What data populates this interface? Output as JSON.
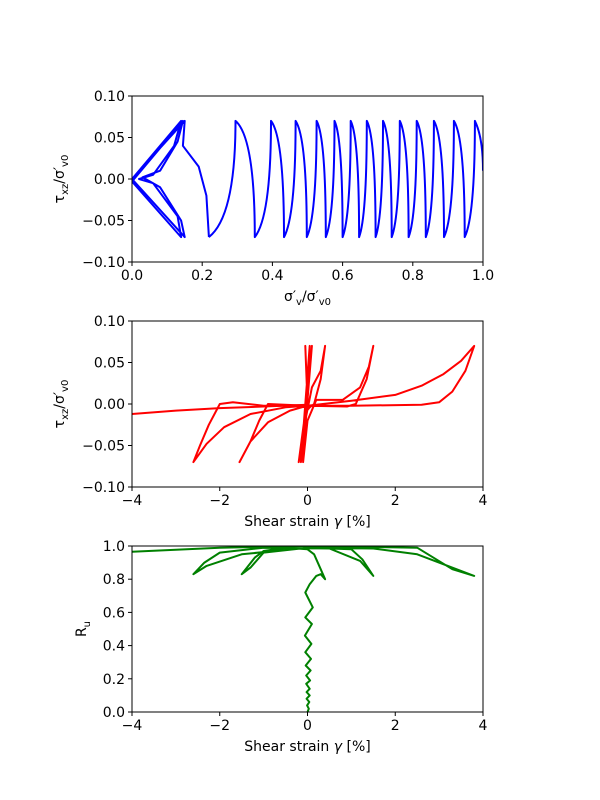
{
  "chart_data": [
    {
      "type": "line",
      "title": "",
      "xlabel": [
        [
          "σ′"
        ],
        [
          "v",
          "sub"
        ],
        [
          "/σ′"
        ],
        [
          "v0",
          "sub"
        ]
      ],
      "ylabel": [
        [
          "τ"
        ],
        [
          "xz",
          "sub"
        ],
        [
          "/σ′"
        ],
        [
          "v0",
          "sub"
        ]
      ],
      "xlim": [
        0,
        1
      ],
      "ylim": [
        -0.1,
        0.1
      ],
      "xticks": [
        "0.0",
        "0.2",
        "0.4",
        "0.6",
        "0.8",
        "1.0"
      ],
      "yticks": [
        "−0.10",
        "−0.05",
        "0.00",
        "0.05",
        "0.10"
      ],
      "xtick_values": [
        0,
        0.2,
        0.4,
        0.6,
        0.8,
        1.0
      ],
      "ytick_values": [
        -0.1,
        -0.05,
        0,
        0.05,
        0.1
      ],
      "color": "#0000ff",
      "initial_points": [
        [
          0,
          0
        ],
        [
          0.14,
          0.07
        ],
        [
          0.12,
          0.04
        ],
        [
          0.06,
          0.005
        ],
        [
          0.02,
          0
        ],
        [
          0.06,
          -0.005
        ],
        [
          0.13,
          -0.045
        ],
        [
          0.14,
          -0.07
        ],
        [
          0.0,
          -0.003
        ],
        [
          0.145,
          0.07
        ],
        [
          0.13,
          0.045
        ],
        [
          0.08,
          0.01
        ],
        [
          0.03,
          0.002
        ],
        [
          0.08,
          -0.01
        ],
        [
          0.14,
          -0.05
        ],
        [
          0.15,
          -0.07
        ],
        [
          0,
          0
        ],
        [
          0.15,
          0.07
        ],
        [
          0.145,
          0.04
        ],
        [
          0.19,
          0.015
        ],
        [
          0.212,
          -0.02
        ],
        [
          0.219,
          -0.07
        ]
      ],
      "turning_points": [
        [
          0.219,
          -0.07
        ],
        [
          0.295,
          0.07
        ],
        [
          0.35,
          -0.07
        ],
        [
          0.396,
          0.07
        ],
        [
          0.433,
          -0.07
        ],
        [
          0.466,
          0.07
        ],
        [
          0.498,
          -0.07
        ],
        [
          0.526,
          0.07
        ],
        [
          0.552,
          -0.07
        ],
        [
          0.577,
          0.07
        ],
        [
          0.6,
          -0.07
        ],
        [
          0.623,
          0.07
        ],
        [
          0.647,
          -0.07
        ],
        [
          0.669,
          0.07
        ],
        [
          0.694,
          -0.07
        ],
        [
          0.715,
          0.07
        ],
        [
          0.74,
          -0.07
        ],
        [
          0.763,
          0.07
        ],
        [
          0.788,
          -0.07
        ],
        [
          0.811,
          0.07
        ],
        [
          0.837,
          -0.07
        ],
        [
          0.86,
          0.07
        ],
        [
          0.889,
          -0.07
        ],
        [
          0.917,
          0.07
        ],
        [
          0.948,
          -0.07
        ],
        [
          0.977,
          0.07
        ],
        [
          1.0,
          0.01
        ]
      ]
    },
    {
      "type": "line",
      "xlabel": [
        [
          "Shear strain "
        ],
        [
          "γ",
          "it"
        ],
        [
          " [%]"
        ]
      ],
      "ylabel": [
        [
          "τ"
        ],
        [
          "xz",
          "sub"
        ],
        [
          "/σ′"
        ],
        [
          "v0",
          "sub"
        ]
      ],
      "xlim": [
        -4,
        4
      ],
      "ylim": [
        -0.1,
        0.1
      ],
      "xticks": [
        "−4",
        "−2",
        "0",
        "2",
        "4"
      ],
      "yticks": [
        "−0.10",
        "−0.05",
        "0.00",
        "0.05",
        "0.10"
      ],
      "xtick_values": [
        -4,
        -2,
        0,
        2,
        4
      ],
      "ytick_values": [
        -0.1,
        -0.05,
        0,
        0.05,
        0.1
      ],
      "color": "#ff0000",
      "points": [
        [
          0,
          0
        ],
        [
          -0.05,
          0.07
        ],
        [
          0.0,
          0.0
        ],
        [
          -0.15,
          -0.07
        ],
        [
          0.05,
          0.07
        ],
        [
          -0.1,
          -0.06
        ],
        [
          0.1,
          0.07
        ],
        [
          -0.05,
          -0.01
        ],
        [
          -0.2,
          -0.07
        ],
        [
          -0.05,
          -0.02
        ],
        [
          0.1,
          0.02
        ],
        [
          0.3,
          0.04
        ],
        [
          0.4,
          0.07
        ],
        [
          0.3,
          0.03
        ],
        [
          0.15,
          0.0
        ],
        [
          0.05,
          -0.004
        ],
        [
          -0.05,
          -0.01
        ],
        [
          -0.1,
          -0.03
        ],
        [
          -0.1,
          -0.07
        ],
        [
          0.0,
          -0.02
        ],
        [
          0.2,
          0.005
        ],
        [
          0.8,
          0.005
        ],
        [
          1.2,
          0.02
        ],
        [
          1.4,
          0.045
        ],
        [
          1.5,
          0.07
        ],
        [
          1.35,
          0.03
        ],
        [
          1.1,
          0.0
        ],
        [
          0.9,
          -0.003
        ],
        [
          0,
          -0.002
        ],
        [
          -0.9,
          0.0
        ],
        [
          -1.1,
          -0.02
        ],
        [
          -1.3,
          -0.045
        ],
        [
          -1.55,
          -0.07
        ],
        [
          -1.3,
          -0.045
        ],
        [
          -0.9,
          -0.022
        ],
        [
          -0.4,
          -0.008
        ],
        [
          0,
          -0.002
        ],
        [
          1,
          0.004
        ],
        [
          2,
          0.011
        ],
        [
          2.6,
          0.022
        ],
        [
          3.1,
          0.036
        ],
        [
          3.5,
          0.052
        ],
        [
          3.8,
          0.07
        ],
        [
          3.6,
          0.04
        ],
        [
          3.3,
          0.015
        ],
        [
          3.0,
          0.002
        ],
        [
          2.6,
          -0.001
        ],
        [
          1,
          -0.002
        ],
        [
          -1,
          -0.002
        ],
        [
          -1.7,
          0.002
        ],
        [
          -2.0,
          0.0
        ],
        [
          -2.25,
          -0.025
        ],
        [
          -2.45,
          -0.05
        ],
        [
          -2.6,
          -0.07
        ],
        [
          -2.3,
          -0.048
        ],
        [
          -1.9,
          -0.028
        ],
        [
          -1.3,
          -0.012
        ],
        [
          -0.5,
          -0.004
        ],
        [
          0,
          -0.002
        ]
      ],
      "tail_points": [
        [
          -4,
          -0.012
        ],
        [
          -3,
          -0.008
        ],
        [
          -2,
          -0.005
        ],
        [
          -1,
          -0.003
        ],
        [
          0,
          -0.001
        ]
      ]
    },
    {
      "type": "line",
      "xlabel": [
        [
          "Shear strain "
        ],
        [
          "γ",
          "it"
        ],
        [
          " [%]"
        ]
      ],
      "ylabel": [
        [
          "R"
        ],
        [
          "u",
          "sub"
        ]
      ],
      "xlim": [
        -4,
        4
      ],
      "ylim": [
        0,
        1
      ],
      "xticks": [
        "−4",
        "−2",
        "0",
        "2",
        "4"
      ],
      "yticks": [
        "0.0",
        "0.2",
        "0.4",
        "0.6",
        "0.8",
        "1.0"
      ],
      "xtick_values": [
        -4,
        -2,
        0,
        2,
        4
      ],
      "ytick_values": [
        0,
        0.2,
        0.4,
        0.6,
        0.8,
        1.0
      ],
      "color": "#008000",
      "points": [
        [
          0,
          0
        ],
        [
          0.03,
          0.02
        ],
        [
          -0.01,
          0.04
        ],
        [
          0.04,
          0.06
        ],
        [
          -0.02,
          0.08
        ],
        [
          0.05,
          0.1
        ],
        [
          -0.02,
          0.12
        ],
        [
          0.05,
          0.14
        ],
        [
          -0.03,
          0.17
        ],
        [
          0.06,
          0.19
        ],
        [
          -0.03,
          0.22
        ],
        [
          0.07,
          0.25
        ],
        [
          -0.04,
          0.28
        ],
        [
          0.08,
          0.32
        ],
        [
          -0.05,
          0.36
        ],
        [
          0.09,
          0.41
        ],
        [
          -0.06,
          0.46
        ],
        [
          0.1,
          0.53
        ],
        [
          -0.05,
          0.57
        ],
        [
          0.12,
          0.63
        ],
        [
          -0.05,
          0.72
        ],
        [
          0.05,
          0.77
        ],
        [
          0.2,
          0.82
        ],
        [
          0.3,
          0.83
        ],
        [
          0.4,
          0.8
        ],
        [
          0.3,
          0.86
        ],
        [
          0.15,
          0.95
        ],
        [
          0,
          0.98
        ],
        [
          -0.5,
          0.99
        ],
        [
          -1.0,
          0.97
        ],
        [
          -1.2,
          0.93
        ],
        [
          -1.5,
          0.83
        ],
        [
          -1.3,
          0.87
        ],
        [
          -1.0,
          0.96
        ],
        [
          0,
          0.99
        ],
        [
          1.0,
          0.98
        ],
        [
          1.25,
          0.92
        ],
        [
          1.5,
          0.82
        ],
        [
          1.2,
          0.91
        ],
        [
          0.5,
          0.985
        ],
        [
          -1,
          0.99
        ],
        [
          -2,
          0.96
        ],
        [
          -2.35,
          0.9
        ],
        [
          -2.6,
          0.83
        ],
        [
          -2.3,
          0.88
        ],
        [
          -1.5,
          0.95
        ],
        [
          0,
          0.99
        ],
        [
          1.5,
          0.985
        ],
        [
          2.5,
          0.95
        ],
        [
          3.2,
          0.88
        ],
        [
          3.8,
          0.82
        ],
        [
          3.3,
          0.86
        ],
        [
          2.5,
          0.99
        ],
        [
          0,
          1.0
        ],
        [
          -2,
          0.99
        ],
        [
          -4,
          0.965
        ]
      ]
    }
  ]
}
